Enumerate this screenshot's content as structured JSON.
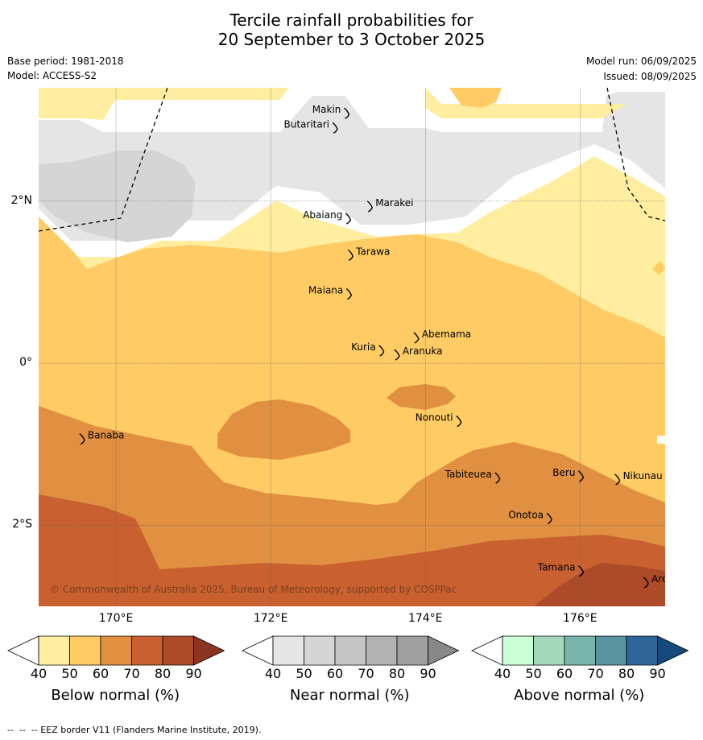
{
  "title": {
    "line1": "Tercile rainfall probabilities for",
    "line2": "20 September to 3 October 2025"
  },
  "meta": {
    "base_period": "Base period: 1981-2018",
    "model": "Model: ACCESS-S2",
    "model_run": "Model run: 06/09/2025",
    "issued": "Issued: 08/09/2025"
  },
  "map": {
    "lon_range": [
      169.0,
      177.1
    ],
    "lat_range": [
      -3.0,
      3.4
    ],
    "lat_ticks": [
      {
        "value": 2,
        "label": "2°N"
      },
      {
        "value": 0,
        "label": "0°"
      },
      {
        "value": -2,
        "label": "2°S"
      }
    ],
    "lon_ticks": [
      {
        "value": 170,
        "label": "170°E"
      },
      {
        "value": 172,
        "label": "172°E"
      },
      {
        "value": 174,
        "label": "174°E"
      },
      {
        "value": 176,
        "label": "176°E"
      }
    ],
    "islands": [
      {
        "name": "Makin",
        "lon": 172.95,
        "lat": 3.15
      },
      {
        "name": "Butaritari",
        "lon": 172.8,
        "lat": 2.97
      },
      {
        "name": "Marakei",
        "lon": 173.25,
        "lat": 2.0
      },
      {
        "name": "Abaiang",
        "lon": 172.97,
        "lat": 1.85
      },
      {
        "name": "Tarawa",
        "lon": 173.0,
        "lat": 1.4
      },
      {
        "name": "Maiana",
        "lon": 172.98,
        "lat": 0.92
      },
      {
        "name": "Abemama",
        "lon": 173.85,
        "lat": 0.38
      },
      {
        "name": "Kuria",
        "lon": 173.4,
        "lat": 0.22
      },
      {
        "name": "Aranuka",
        "lon": 173.6,
        "lat": 0.17
      },
      {
        "name": "Nonouti",
        "lon": 174.4,
        "lat": -0.65
      },
      {
        "name": "Banaba",
        "lon": 169.53,
        "lat": -0.87
      },
      {
        "name": "Tabiteuea",
        "lon": 174.9,
        "lat": -1.35
      },
      {
        "name": "Beru",
        "lon": 175.98,
        "lat": -1.33
      },
      {
        "name": "Nikunau",
        "lon": 176.45,
        "lat": -1.37
      },
      {
        "name": "Onotoa",
        "lon": 175.57,
        "lat": -1.85
      },
      {
        "name": "Tamana",
        "lon": 175.98,
        "lat": -2.5
      },
      {
        "name": "Arorae",
        "lon": 176.82,
        "lat": -2.64
      }
    ],
    "copyright": "© Commonwealth of Australia 2025, Bureau of Meteorology, supported by COSPPac"
  },
  "colorbars": [
    {
      "id": "below",
      "title": "Below normal (%)",
      "ticks": [
        "40",
        "50",
        "60",
        "70",
        "80",
        "90"
      ],
      "colors": [
        "#ffffff",
        "#ffeda0",
        "#fecb65",
        "#e09040",
        "#c96030",
        "#ad4a28",
        "#8b3520"
      ]
    },
    {
      "id": "near",
      "title": "Near normal (%)",
      "ticks": [
        "40",
        "50",
        "60",
        "70",
        "80",
        "90"
      ],
      "colors": [
        "#ffffff",
        "#e5e5e5",
        "#d5d5d5",
        "#c5c5c5",
        "#b2b2b2",
        "#9f9f9f",
        "#888888"
      ]
    },
    {
      "id": "above",
      "title": "Above normal (%)",
      "ticks": [
        "40",
        "50",
        "60",
        "70",
        "80",
        "90"
      ],
      "colors": [
        "#ffffff",
        "#ccffd5",
        "#a3d8bc",
        "#79b5ad",
        "#5a93a0",
        "#2f6698",
        "#17497a"
      ]
    }
  ],
  "eez_note": "--  --  -- EEZ border V11 (Flanders Marine Institute, 2019)."
}
